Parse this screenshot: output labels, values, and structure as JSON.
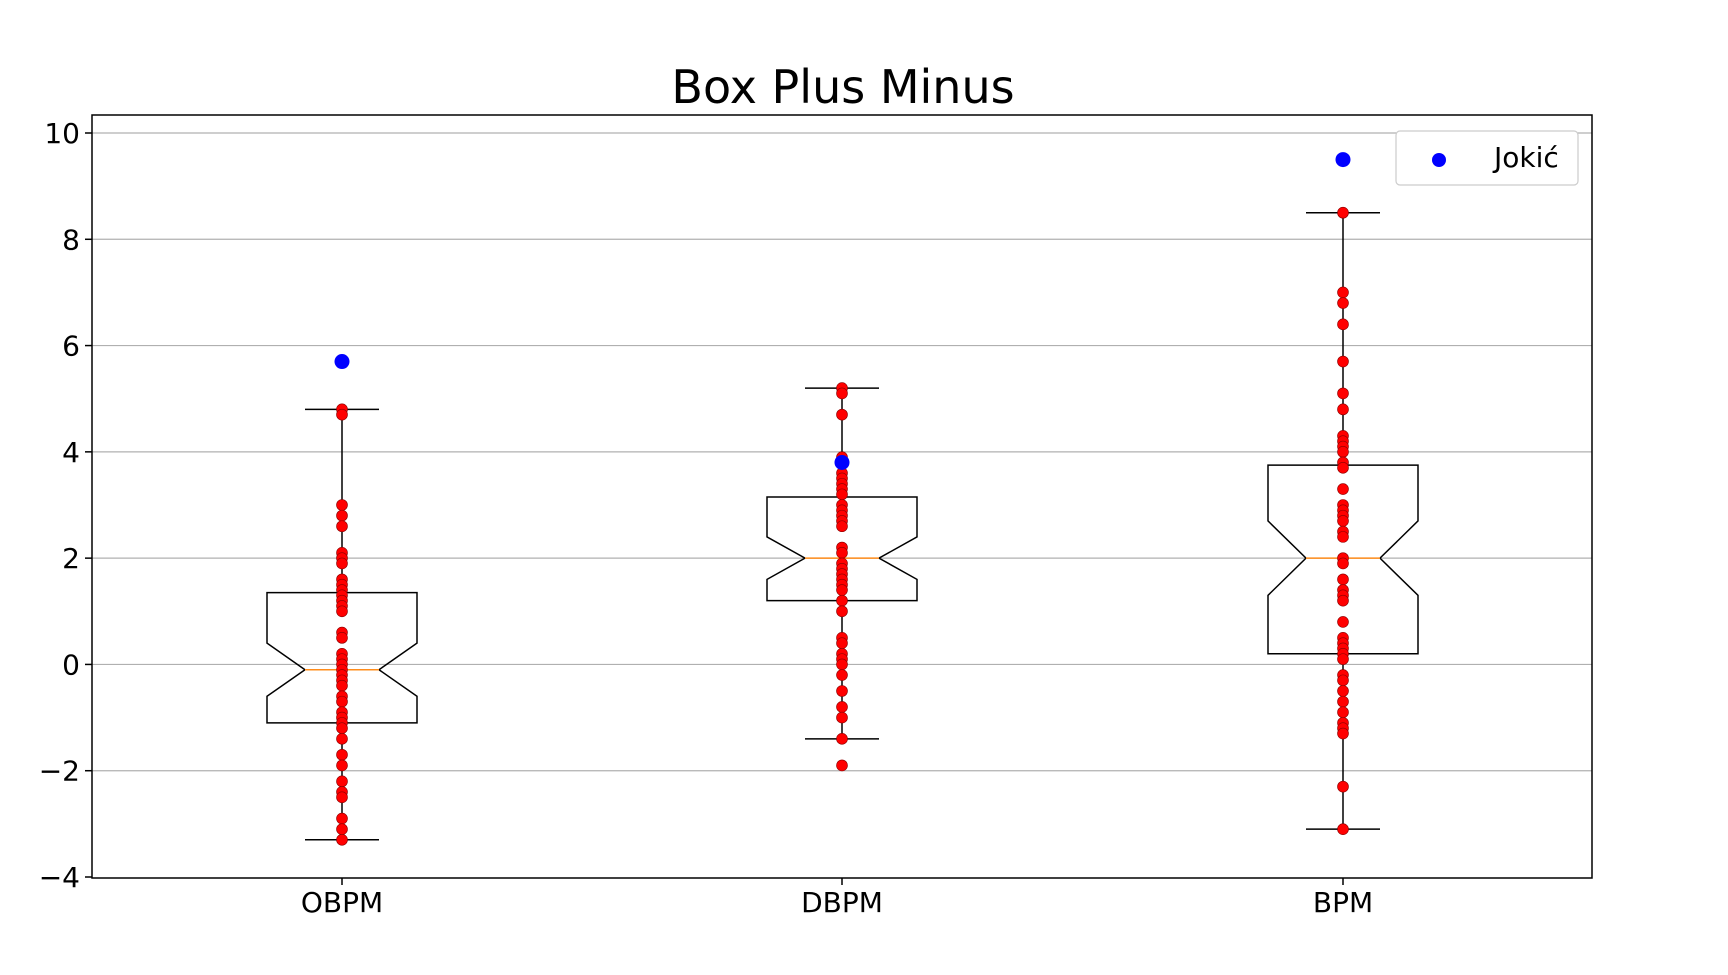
{
  "chart_data": {
    "type": "box",
    "title": "Box Plus Minus",
    "xlabel": "",
    "ylabel": "",
    "categories": [
      "OBPM",
      "DBPM",
      "BPM"
    ],
    "ylim": [
      -4,
      10
    ],
    "yticks": [
      -4,
      -2,
      0,
      2,
      4,
      6,
      8,
      10
    ],
    "grid": "horizontal",
    "legend": {
      "placement": "top-right",
      "entries": [
        {
          "label": "Jokić",
          "color": "#0000ff"
        }
      ]
    },
    "colors": {
      "points": "#ff0000",
      "highlight": "#0000ff",
      "median": "#ff8c1a",
      "box": "#000000",
      "grid": "#b0b0b0"
    },
    "boxes": [
      {
        "category": "OBPM",
        "whisker_low": -3.3,
        "q1": -1.1,
        "notch_low": -0.6,
        "median": -0.1,
        "notch_high": 0.4,
        "q3": 1.35,
        "whisker_high": 4.8
      },
      {
        "category": "DBPM",
        "whisker_low": -1.4,
        "q1": 1.2,
        "notch_low": 1.6,
        "median": 2.0,
        "notch_high": 2.4,
        "q3": 3.15,
        "whisker_high": 5.2
      },
      {
        "category": "BPM",
        "whisker_low": -3.1,
        "q1": 0.2,
        "notch_low": 1.3,
        "median": 2.0,
        "notch_high": 2.7,
        "q3": 3.75,
        "whisker_high": 8.5
      }
    ],
    "series": [
      {
        "category": "OBPM",
        "values": [
          4.8,
          4.7,
          3.0,
          2.8,
          2.6,
          2.1,
          2.0,
          1.9,
          1.6,
          1.5,
          1.4,
          1.3,
          1.2,
          1.1,
          1.0,
          0.6,
          0.5,
          0.2,
          0.1,
          0.0,
          -0.1,
          -0.2,
          -0.3,
          -0.4,
          -0.6,
          -0.7,
          -0.9,
          -1.0,
          -1.1,
          -1.2,
          -1.4,
          -1.7,
          -1.9,
          -2.2,
          -2.4,
          -2.5,
          -2.9,
          -3.1,
          -3.3
        ]
      },
      {
        "category": "DBPM",
        "values": [
          5.2,
          5.1,
          4.7,
          3.9,
          3.8,
          3.6,
          3.5,
          3.4,
          3.3,
          3.2,
          3.0,
          2.9,
          2.8,
          2.7,
          2.6,
          2.2,
          2.1,
          1.9,
          1.8,
          1.7,
          1.6,
          1.5,
          1.4,
          1.2,
          1.0,
          0.5,
          0.4,
          0.2,
          0.1,
          0.0,
          -0.2,
          -0.5,
          -0.8,
          -1.0,
          -1.4,
          -1.9
        ]
      },
      {
        "category": "BPM",
        "values": [
          8.5,
          7.0,
          6.8,
          6.4,
          5.7,
          5.1,
          4.8,
          4.3,
          4.2,
          4.1,
          4.0,
          3.8,
          3.7,
          3.3,
          3.0,
          2.9,
          2.8,
          2.7,
          2.5,
          2.4,
          2.0,
          1.9,
          1.6,
          1.4,
          1.3,
          1.2,
          0.8,
          0.5,
          0.4,
          0.3,
          0.2,
          0.1,
          -0.2,
          -0.3,
          -0.5,
          -0.7,
          -0.9,
          -1.1,
          -1.2,
          -1.3,
          -2.3,
          -3.1
        ]
      }
    ],
    "highlight": {
      "name": "Jokić",
      "values": [
        5.7,
        3.8,
        9.5
      ]
    }
  }
}
